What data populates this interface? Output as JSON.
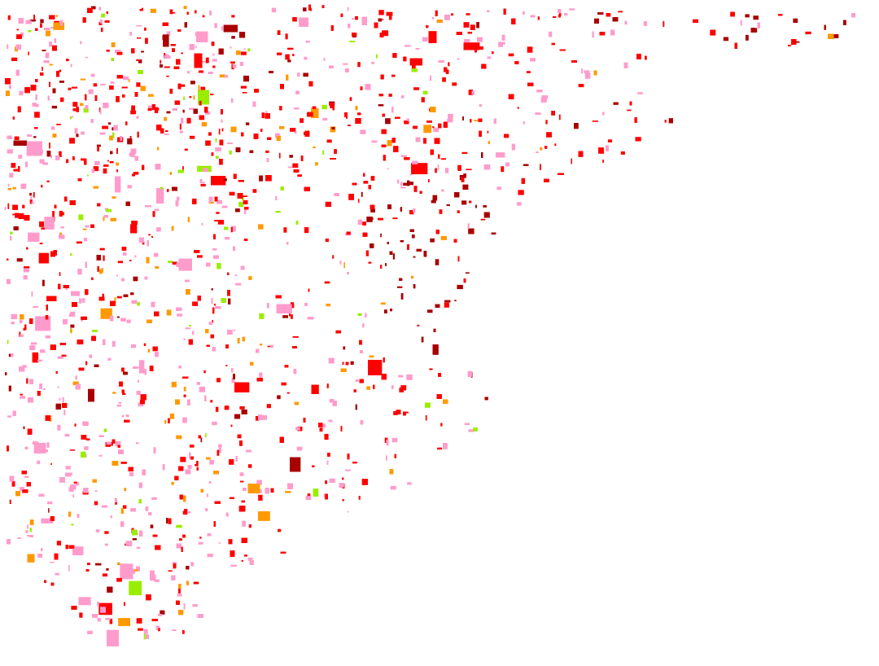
{
  "map": {
    "type": "land-parcel choropleth",
    "background": "#ffffff",
    "category_colors": {
      "dark_red": "#a80000",
      "red": "#ff0000",
      "pink": "#ff9ccc",
      "orange": "#ff9900",
      "lime": "#99ee00"
    }
  }
}
